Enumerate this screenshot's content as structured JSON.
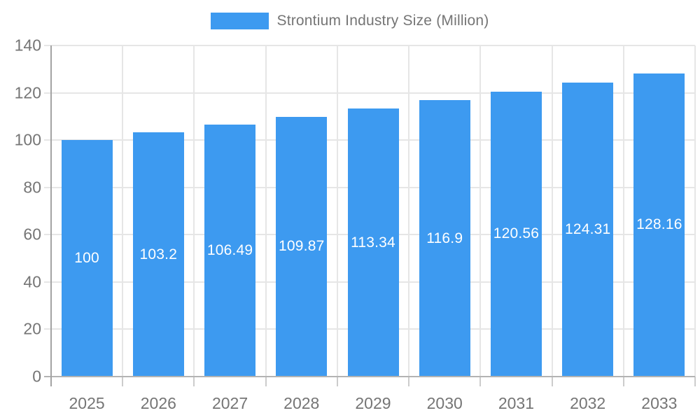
{
  "chart_data": {
    "type": "bar",
    "title": "Strontium Industry Size (Million)",
    "categories": [
      "2025",
      "2026",
      "2027",
      "2028",
      "2029",
      "2030",
      "2031",
      "2032",
      "2033"
    ],
    "values": [
      100,
      103.2,
      106.49,
      109.87,
      113.34,
      116.9,
      120.56,
      124.31,
      128.16
    ],
    "value_labels": [
      "100",
      "103.2",
      "106.49",
      "109.87",
      "113.34",
      "116.9",
      "120.56",
      "124.31",
      "128.16"
    ],
    "xlabel": "",
    "ylabel": "",
    "ylim": [
      0,
      140
    ],
    "ytick_step": 20,
    "ytick_labels": [
      "0",
      "20",
      "40",
      "60",
      "80",
      "100",
      "120",
      "140"
    ],
    "grid": "on",
    "legend_position": "top-center",
    "colors": {
      "bar": "#3d9af0",
      "grid_line": "#e6e6e6",
      "baseline": "#b3b3b3",
      "axis_line": "#a3a3a3",
      "axis_text": "#757575",
      "bar_label_text": "#ffffff",
      "background": "#ffffff"
    }
  }
}
